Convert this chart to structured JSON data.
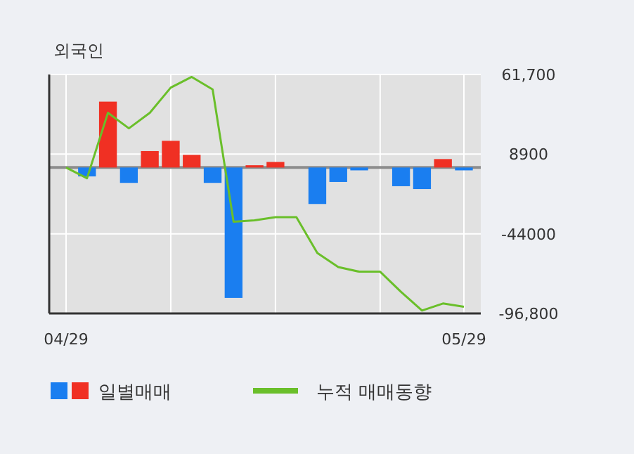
{
  "chart_data": {
    "type": "bar",
    "title": "외국인",
    "categories": [
      "04/29",
      null,
      null,
      null,
      null,
      null,
      null,
      null,
      null,
      null,
      null,
      null,
      null,
      null,
      null,
      null,
      null,
      null,
      null,
      "05/29"
    ],
    "series": [
      {
        "name": "일별매매",
        "colors": [
          "#1a7ef0",
          "#1a7ef0",
          "#f03023",
          "#1a7ef0",
          "#f03023",
          "#f03023",
          "#f03023",
          "#1a7ef0",
          "#1a7ef0",
          "#f03023",
          "#f03023",
          "#f03023",
          "#1a7ef0",
          "#1a7ef0",
          "#1a7ef0",
          "#f03023",
          "#1a7ef0",
          "#1a7ef0",
          "#f03023",
          "#1a7ef0"
        ],
        "values": [
          0,
          -5900,
          43700,
          -10200,
          10900,
          17700,
          8400,
          -10200,
          -86500,
          1500,
          3700,
          0,
          -24200,
          -9600,
          -1900,
          0,
          -12400,
          -14300,
          5600,
          -1900
        ]
      },
      {
        "name": "누적 매매동향",
        "type": "line",
        "color": "#6abf2a",
        "values": [
          0,
          -7100,
          36300,
          26000,
          36300,
          53000,
          60100,
          51800,
          -36000,
          -35000,
          -32900,
          -32900,
          -56700,
          -66000,
          -69100,
          -69100,
          -82500,
          -94900,
          -90200,
          -92400
        ]
      }
    ],
    "ylim": [
      -96800,
      61700
    ],
    "yticks": [
      {
        "value": 61700,
        "label": "61,700"
      },
      8900,
      -44000,
      {
        "value": -96800,
        "label": "-96,800"
      }
    ],
    "ref_lines": [
      {
        "axis": "y",
        "value": 0,
        "color": "#8c8c8c"
      }
    ],
    "grid": true,
    "legend": "bottom"
  }
}
